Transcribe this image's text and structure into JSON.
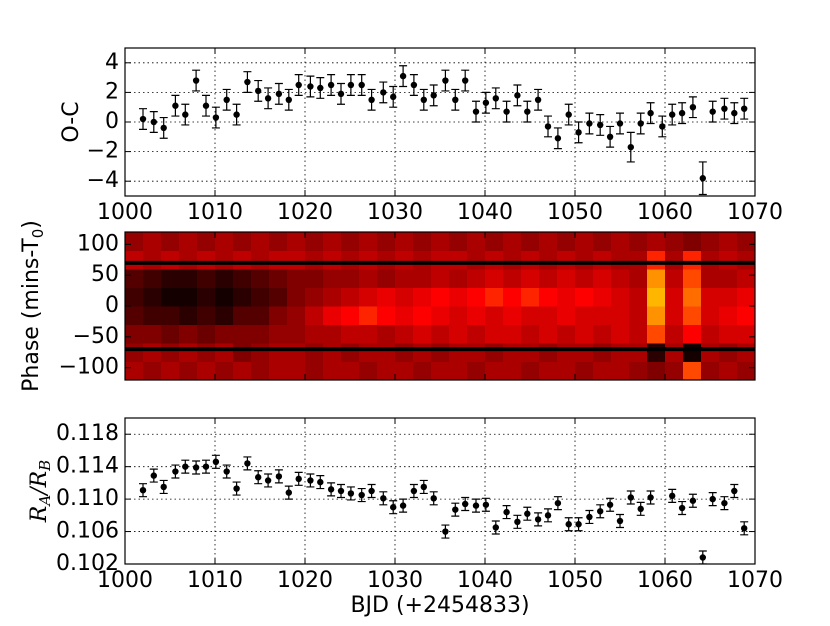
{
  "chart_data": [
    {
      "type": "errorbar",
      "ylabel": "O-C",
      "xlim": [
        1000,
        1070
      ],
      "ylim": [
        -5,
        5
      ],
      "xticks": [
        1000,
        1010,
        1020,
        1030,
        1040,
        1050,
        1060,
        1070
      ],
      "xticklabels": true,
      "yticks": [
        {
          "value": -4,
          "label": "−4"
        },
        {
          "value": -2,
          "label": "−2"
        },
        0,
        2,
        4
      ],
      "grid": true,
      "color": "#000000",
      "x": [
        1002.0,
        1003.2,
        1004.3,
        1005.6,
        1006.7,
        1007.9,
        1009.0,
        1010.1,
        1011.3,
        1012.4,
        1013.6,
        1014.8,
        1015.9,
        1017.1,
        1018.2,
        1019.3,
        1020.6,
        1021.7,
        1022.9,
        1024.0,
        1025.1,
        1026.3,
        1027.4,
        1028.7,
        1029.8,
        1030.9,
        1032.1,
        1033.2,
        1034.3,
        1035.6,
        1036.7,
        1037.8,
        1039.0,
        1040.1,
        1041.2,
        1042.4,
        1043.6,
        1044.7,
        1045.9,
        1047.0,
        1048.1,
        1049.3,
        1050.4,
        1051.6,
        1052.8,
        1053.9,
        1055.0,
        1056.2,
        1057.3,
        1058.4,
        1059.7,
        1060.8,
        1061.9,
        1063.1,
        1064.2,
        1065.3,
        1066.6,
        1067.7,
        1068.8
      ],
      "values": [
        0.2,
        0.0,
        -0.4,
        1.1,
        0.5,
        2.8,
        1.1,
        0.3,
        1.5,
        0.5,
        2.7,
        2.1,
        1.6,
        1.9,
        1.5,
        2.5,
        2.4,
        2.3,
        2.5,
        1.9,
        2.5,
        2.5,
        1.5,
        2.0,
        1.7,
        3.1,
        2.5,
        1.5,
        1.8,
        2.8,
        1.5,
        2.8,
        0.7,
        1.3,
        1.6,
        0.7,
        1.8,
        0.7,
        1.5,
        -0.3,
        -1.1,
        0.5,
        -0.7,
        -0.1,
        -0.2,
        -1.0,
        -0.1,
        -1.7,
        -0.1,
        0.6,
        -0.3,
        0.5,
        0.6,
        1.0,
        -3.8,
        0.7,
        0.9,
        0.6,
        0.9
      ],
      "errors": [
        0.7,
        0.7,
        0.7,
        0.7,
        0.7,
        0.7,
        0.7,
        0.7,
        0.7,
        0.7,
        0.7,
        0.7,
        0.7,
        0.7,
        0.7,
        0.7,
        0.7,
        0.7,
        0.7,
        0.7,
        0.7,
        0.7,
        0.7,
        0.7,
        0.7,
        0.7,
        0.7,
        0.7,
        0.7,
        0.7,
        0.7,
        0.7,
        0.7,
        0.7,
        0.7,
        0.7,
        0.7,
        0.7,
        0.7,
        0.7,
        0.7,
        0.7,
        0.7,
        0.7,
        0.7,
        0.7,
        0.7,
        1.0,
        0.7,
        0.7,
        0.7,
        0.7,
        0.7,
        0.7,
        1.1,
        0.7,
        0.7,
        0.7,
        0.7
      ]
    },
    {
      "type": "heatmap",
      "ylabel": [
        "Phase (mins-T",
        "0",
        ")"
      ],
      "xlim": [
        1000,
        1070
      ],
      "ylim": [
        -120,
        120
      ],
      "xticks": [
        1000,
        1010,
        1020,
        1030,
        1040,
        1050,
        1060,
        1070
      ],
      "xticklabels": false,
      "yticks": [
        {
          "value": -100,
          "label": "−100"
        },
        {
          "value": -50,
          "label": "−50"
        },
        0,
        50,
        100
      ],
      "grid": false,
      "hlines": [
        70,
        -70
      ],
      "x_bins": [
        1000,
        1002,
        1004,
        1006,
        1008,
        1010,
        1012,
        1014,
        1016,
        1018,
        1020,
        1022,
        1024,
        1026,
        1028,
        1030,
        1032,
        1034,
        1036,
        1038,
        1040,
        1042,
        1044,
        1046,
        1048,
        1050,
        1052,
        1054,
        1056,
        1058,
        1060,
        1062,
        1064,
        1066,
        1068,
        1070
      ],
      "y_bins": [
        -120,
        -90,
        -60,
        -30,
        0,
        30,
        60,
        90,
        120
      ],
      "z": [
        [
          0.4,
          0.35,
          0.4,
          0.35,
          0.4,
          0.35,
          0.4,
          0.35,
          0.4,
          0.4,
          0.35,
          0.4,
          0.4,
          0.35,
          0.4,
          0.4,
          0.35,
          0.4,
          0.4,
          0.35,
          0.4,
          0.4,
          0.35,
          0.4,
          0.4,
          0.35,
          0.4,
          0.4,
          0.35,
          0.3,
          0.35,
          0.7,
          0.35,
          0.4,
          0.35
        ],
        [
          0.35,
          0.4,
          0.35,
          0.4,
          0.35,
          0.4,
          0.3,
          0.35,
          0.4,
          0.4,
          0.35,
          0.4,
          0.35,
          0.4,
          0.4,
          0.35,
          0.4,
          0.35,
          0.4,
          0.4,
          0.35,
          0.4,
          0.4,
          0.35,
          0.4,
          0.4,
          0.35,
          0.4,
          0.4,
          0.1,
          0.4,
          0.05,
          0.4,
          0.35,
          0.4
        ],
        [
          0.3,
          0.3,
          0.25,
          0.3,
          0.25,
          0.3,
          0.3,
          0.3,
          0.35,
          0.35,
          0.4,
          0.4,
          0.45,
          0.45,
          0.4,
          0.45,
          0.5,
          0.45,
          0.5,
          0.45,
          0.5,
          0.5,
          0.45,
          0.5,
          0.45,
          0.5,
          0.45,
          0.5,
          0.45,
          0.7,
          0.45,
          0.6,
          0.45,
          0.5,
          0.5
        ],
        [
          0.2,
          0.15,
          0.15,
          0.1,
          0.15,
          0.1,
          0.2,
          0.2,
          0.3,
          0.35,
          0.45,
          0.55,
          0.6,
          0.65,
          0.6,
          0.55,
          0.6,
          0.55,
          0.5,
          0.55,
          0.5,
          0.55,
          0.5,
          0.5,
          0.55,
          0.5,
          0.5,
          0.5,
          0.45,
          0.8,
          0.5,
          0.7,
          0.5,
          0.55,
          0.6
        ],
        [
          0.15,
          0.1,
          0.05,
          0.05,
          0.1,
          0.05,
          0.1,
          0.15,
          0.2,
          0.3,
          0.35,
          0.4,
          0.45,
          0.5,
          0.55,
          0.5,
          0.55,
          0.6,
          0.55,
          0.6,
          0.65,
          0.6,
          0.65,
          0.6,
          0.55,
          0.6,
          0.55,
          0.5,
          0.45,
          0.85,
          0.5,
          0.75,
          0.5,
          0.5,
          0.55
        ],
        [
          0.2,
          0.15,
          0.1,
          0.1,
          0.15,
          0.1,
          0.15,
          0.2,
          0.25,
          0.3,
          0.3,
          0.35,
          0.35,
          0.4,
          0.35,
          0.4,
          0.4,
          0.45,
          0.4,
          0.45,
          0.5,
          0.45,
          0.5,
          0.45,
          0.5,
          0.45,
          0.5,
          0.45,
          0.4,
          0.8,
          0.45,
          0.7,
          0.4,
          0.4,
          0.45
        ],
        [
          0.45,
          0.4,
          0.45,
          0.4,
          0.45,
          0.4,
          0.45,
          0.4,
          0.45,
          0.45,
          0.4,
          0.45,
          0.4,
          0.45,
          0.4,
          0.45,
          0.4,
          0.45,
          0.45,
          0.4,
          0.45,
          0.4,
          0.45,
          0.4,
          0.45,
          0.4,
          0.45,
          0.4,
          0.4,
          0.65,
          0.4,
          0.65,
          0.4,
          0.45,
          0.4
        ],
        [
          0.35,
          0.4,
          0.35,
          0.4,
          0.35,
          0.4,
          0.35,
          0.4,
          0.35,
          0.4,
          0.35,
          0.4,
          0.35,
          0.4,
          0.35,
          0.4,
          0.35,
          0.4,
          0.35,
          0.4,
          0.35,
          0.4,
          0.35,
          0.4,
          0.35,
          0.4,
          0.35,
          0.4,
          0.35,
          0.4,
          0.35,
          0.3,
          0.35,
          0.4,
          0.35
        ]
      ]
    },
    {
      "type": "errorbar",
      "ylabel": [
        "R",
        "A",
        "/R",
        "B"
      ],
      "xlabel": "BJD (+2454833)",
      "xlim": [
        1000,
        1070
      ],
      "ylim": [
        0.102,
        0.12
      ],
      "xticks": [
        1000,
        1010,
        1020,
        1030,
        1040,
        1050,
        1060,
        1070
      ],
      "xticklabels": true,
      "yticks": [
        0.102,
        0.106,
        {
          "value": 0.11,
          "label": "0.110"
        },
        0.114,
        0.118
      ],
      "grid": true,
      "color": "#000000",
      "x": [
        1002.0,
        1003.2,
        1004.3,
        1005.6,
        1006.7,
        1007.9,
        1009.0,
        1010.1,
        1011.3,
        1012.4,
        1013.6,
        1014.8,
        1015.9,
        1017.1,
        1018.2,
        1019.3,
        1020.6,
        1021.7,
        1022.9,
        1024.0,
        1025.1,
        1026.3,
        1027.4,
        1028.7,
        1029.8,
        1030.9,
        1032.1,
        1033.2,
        1034.3,
        1035.6,
        1036.7,
        1037.8,
        1039.0,
        1040.1,
        1041.2,
        1042.4,
        1043.6,
        1044.7,
        1045.9,
        1047.0,
        1048.1,
        1049.3,
        1050.4,
        1051.6,
        1052.8,
        1053.9,
        1055.0,
        1056.2,
        1057.3,
        1058.4,
        1059.7,
        1060.8,
        1061.9,
        1063.1,
        1064.2,
        1065.3,
        1066.6,
        1067.7,
        1068.8
      ],
      "values": [
        0.1111,
        0.1129,
        0.1115,
        0.1134,
        0.114,
        0.1139,
        0.114,
        0.1146,
        0.1134,
        0.1113,
        0.1144,
        0.1127,
        0.1123,
        0.1128,
        0.1108,
        0.1125,
        0.1123,
        0.1121,
        0.1112,
        0.111,
        0.1107,
        0.1105,
        0.111,
        0.1101,
        0.109,
        0.1092,
        0.111,
        0.1115,
        0.1101,
        0.106,
        0.1087,
        0.1094,
        0.1092,
        0.1093,
        0.1065,
        0.1084,
        0.1072,
        0.1082,
        0.1075,
        0.108,
        0.1095,
        0.1069,
        0.1069,
        0.1078,
        0.1085,
        0.1093,
        0.1073,
        0.1102,
        0.1088,
        0.1102,
        null,
        0.1104,
        0.1089,
        0.1098,
        0.1028,
        0.11,
        0.1095,
        0.111,
        0.1064
      ],
      "errors": [
        0.0008,
        0.0008,
        0.0008,
        0.0008,
        0.0008,
        0.0008,
        0.0008,
        0.0008,
        0.0008,
        0.0008,
        0.0008,
        0.0008,
        0.0008,
        0.0008,
        0.0008,
        0.0008,
        0.0008,
        0.0008,
        0.0008,
        0.0008,
        0.0008,
        0.0008,
        0.0008,
        0.0008,
        0.0008,
        0.0008,
        0.0008,
        0.0008,
        0.0008,
        0.0008,
        0.0008,
        0.0008,
        0.0008,
        0.0008,
        0.0008,
        0.0008,
        0.0008,
        0.0008,
        0.0008,
        0.0008,
        0.0008,
        0.0008,
        0.0008,
        0.0008,
        0.0008,
        0.0008,
        0.0008,
        0.0008,
        0.0008,
        0.0008,
        null,
        0.0008,
        0.0008,
        0.0008,
        0.0008,
        0.0008,
        0.0008,
        0.0008,
        0.0008
      ]
    }
  ]
}
